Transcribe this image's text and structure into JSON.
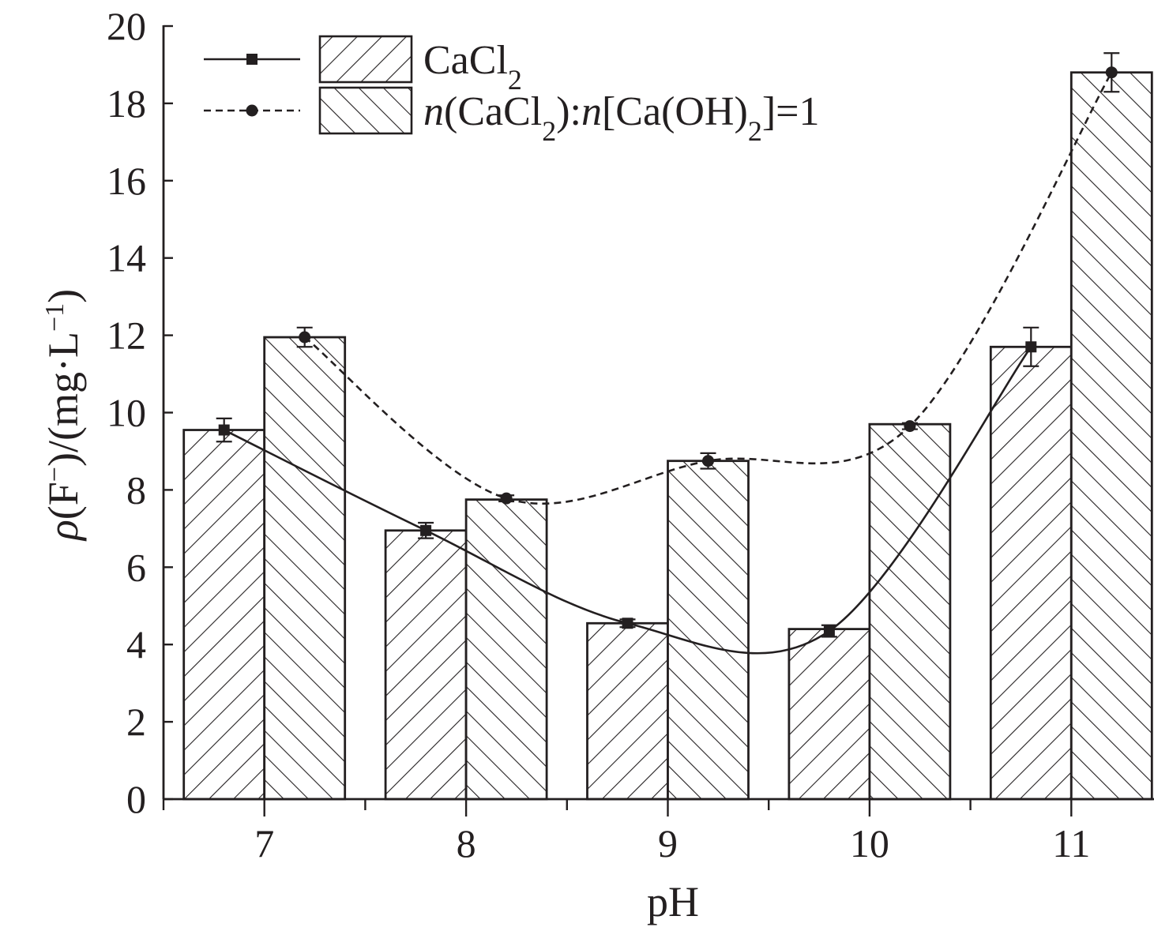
{
  "chart_data": {
    "type": "bar",
    "categories": [
      "7",
      "8",
      "9",
      "10",
      "11"
    ],
    "xlabel": "pH",
    "ylabel": {
      "symbol": "ρ",
      "open": "(F",
      "ion_sup": "−",
      "mid": ")/(mg·L",
      "unit_sup": "−1",
      "close": ")"
    },
    "ylim": [
      0,
      20
    ],
    "yticks": [
      "0",
      "2",
      "4",
      "6",
      "8",
      "10",
      "12",
      "14",
      "16",
      "18",
      "20"
    ],
    "bar_series": [
      {
        "legend": "CaCl2",
        "values": [
          9.55,
          6.95,
          4.55,
          4.4,
          11.7
        ],
        "hatch": "forward"
      },
      {
        "legend": "n(CaCl2):n[Ca(OH)2]=1",
        "values": [
          11.95,
          7.75,
          8.75,
          9.7,
          18.8
        ],
        "hatch": "backward"
      }
    ],
    "line_series": [
      {
        "legend": "CaCl2",
        "marker": "square",
        "style": "solid",
        "values": [
          9.55,
          6.95,
          4.55,
          4.35,
          11.7
        ],
        "errors": [
          0.3,
          0.2,
          0.1,
          0.15,
          0.5
        ]
      },
      {
        "legend": "n(CaCl2):n[Ca(OH)2]=1",
        "marker": "circle",
        "style": "dashed",
        "values": [
          11.95,
          7.78,
          8.75,
          9.65,
          18.8
        ],
        "errors": [
          0.25,
          0.08,
          0.2,
          0.08,
          0.5
        ]
      }
    ],
    "legend": {
      "placement": "top-left",
      "entries": [
        {
          "parts": [
            {
              "t": "CaCl",
              "style": "normal"
            },
            {
              "t": "2",
              "style": "sub"
            }
          ]
        },
        {
          "parts": [
            {
              "t": "n",
              "style": "italic"
            },
            {
              "t": "(CaCl",
              "style": "normal"
            },
            {
              "t": "2",
              "style": "sub"
            },
            {
              "t": "):",
              "style": "normal"
            },
            {
              "t": "n",
              "style": "italic"
            },
            {
              "t": "[Ca(OH)",
              "style": "normal"
            },
            {
              "t": "2",
              "style": "sub"
            },
            {
              "t": "]=1",
              "style": "normal"
            }
          ]
        }
      ]
    },
    "grid": false,
    "colors": {
      "ink": "#231f20",
      "bar_fill": "#ffffff"
    }
  }
}
